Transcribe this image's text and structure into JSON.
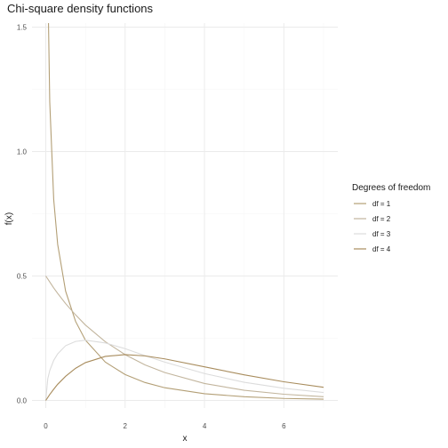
{
  "chart_data": {
    "type": "line",
    "title": "Chi-square density functions",
    "xlabel": "x",
    "ylabel": "f(x)",
    "xlim": [
      0,
      7
    ],
    "ylim": [
      0,
      1.5
    ],
    "x_ticks": [
      0,
      2,
      4,
      6
    ],
    "y_ticks": [
      0.0,
      0.5,
      1.0,
      1.5
    ],
    "x_tick_labels": [
      "0",
      "2",
      "4",
      "6"
    ],
    "y_tick_labels": [
      "0.0",
      "0.5",
      "1.0",
      "1.5"
    ],
    "grid": true,
    "legend": {
      "title": "Degrees of freedom",
      "placement": "right"
    },
    "x": [
      0,
      0.05,
      0.1,
      0.2,
      0.3,
      0.5,
      0.75,
      1,
      1.5,
      2,
      2.5,
      3,
      4,
      5,
      6,
      7
    ],
    "series": [
      {
        "name": "df = 1",
        "color": "#b39f76",
        "values": [
          1.52,
          1.7,
          1.2,
          0.807,
          0.627,
          0.439,
          0.318,
          0.242,
          0.154,
          0.104,
          0.072,
          0.051,
          0.027,
          0.015,
          0.008,
          0.005
        ]
      },
      {
        "name": "df = 2",
        "color": "#c2b59d",
        "values": [
          0.5,
          0.488,
          0.476,
          0.452,
          0.43,
          0.389,
          0.344,
          0.303,
          0.236,
          0.184,
          0.143,
          0.112,
          0.068,
          0.041,
          0.025,
          0.015
        ]
      },
      {
        "name": "df = 3",
        "color": "#dcdcdc",
        "values": [
          0,
          0.087,
          0.12,
          0.161,
          0.187,
          0.22,
          0.237,
          0.242,
          0.231,
          0.208,
          0.18,
          0.154,
          0.108,
          0.073,
          0.049,
          0.032
        ]
      },
      {
        "name": "df = 4",
        "color": "#a88c5d",
        "values": [
          0,
          0.012,
          0.024,
          0.045,
          0.065,
          0.097,
          0.129,
          0.152,
          0.177,
          0.184,
          0.179,
          0.167,
          0.135,
          0.103,
          0.075,
          0.053
        ]
      }
    ]
  }
}
